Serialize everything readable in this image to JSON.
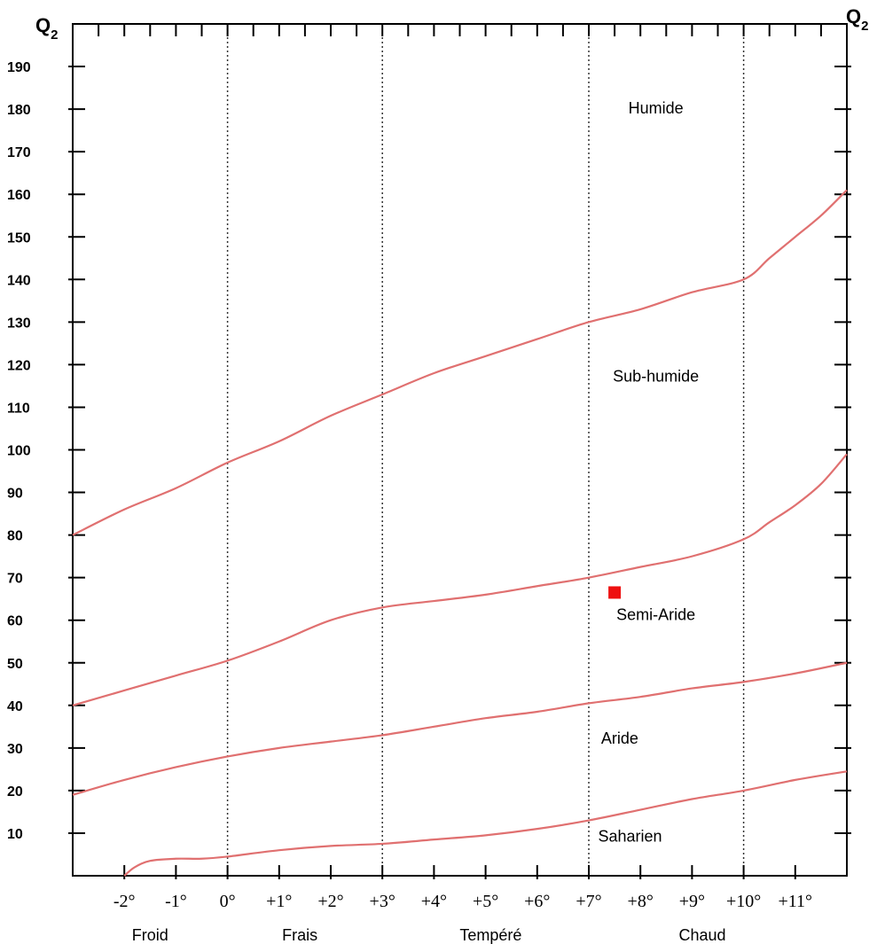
{
  "chart_data": {
    "type": "line",
    "ylabel": "Q",
    "ylabel_sub": "2",
    "ylim": [
      0,
      200
    ],
    "xlim": [
      -3,
      12
    ],
    "yticks": [
      10,
      20,
      30,
      40,
      50,
      60,
      70,
      80,
      90,
      100,
      110,
      120,
      130,
      140,
      150,
      160,
      170,
      180,
      190
    ],
    "ytick_labels": [
      "10",
      "20",
      "30",
      "40",
      "50",
      "60",
      "70",
      "80",
      "90",
      "100",
      "110",
      "120",
      "130",
      "140",
      "150",
      "160",
      "170",
      "180",
      "190"
    ],
    "xticks": [
      -2,
      -1,
      0,
      1,
      2,
      3,
      4,
      5,
      6,
      7,
      8,
      9,
      10,
      11
    ],
    "xtick_labels": [
      "-2°",
      "-1°",
      "0°",
      "+1°",
      "+2°",
      "+3°",
      "+4°",
      "+5°",
      "+6°",
      "+7°",
      "+8°",
      "+9°",
      "+10°",
      "+11°"
    ],
    "vlines": [
      0,
      3,
      7,
      10
    ],
    "line_color": "#e07070",
    "series": [
      {
        "x": [
          -3,
          -2,
          -1,
          0,
          1,
          2,
          3,
          4,
          5,
          6,
          7,
          8,
          9,
          10,
          10.5,
          11,
          11.5,
          12
        ],
        "y": [
          80,
          86,
          91,
          97,
          102,
          108,
          113,
          118,
          122,
          126,
          130,
          133,
          137,
          140,
          145,
          150,
          155,
          161
        ]
      },
      {
        "x": [
          -3,
          -2,
          -1,
          0,
          1,
          2,
          3,
          4,
          5,
          6,
          7,
          8,
          9,
          10,
          10.5,
          11,
          11.5,
          12
        ],
        "y": [
          40,
          43.5,
          47,
          50.5,
          55,
          60,
          63,
          64.5,
          66,
          68,
          70,
          72.5,
          75,
          79,
          83,
          87,
          92,
          99
        ]
      },
      {
        "x": [
          -3,
          -2,
          -1,
          0,
          1,
          2,
          3,
          4,
          5,
          6,
          7,
          8,
          9,
          10,
          11,
          12
        ],
        "y": [
          19,
          22.5,
          25.5,
          28,
          30,
          31.5,
          33,
          35,
          37,
          38.5,
          40.5,
          42,
          44,
          45.5,
          47.5,
          50
        ]
      },
      {
        "x": [
          -2,
          -1.8,
          -1.5,
          -1,
          -0.5,
          0,
          1,
          2,
          3,
          4,
          5,
          6,
          7,
          8,
          9,
          10,
          11,
          12
        ],
        "y": [
          0,
          2,
          3.5,
          4,
          4,
          4.5,
          6,
          7,
          7.5,
          8.5,
          9.5,
          11,
          13,
          15.5,
          18,
          20,
          22.5,
          24.5
        ]
      }
    ],
    "marker": {
      "x": 7.5,
      "y": 66.5,
      "color": "#ee1111"
    },
    "zones": [
      {
        "label": "Humide",
        "x": 8.3,
        "y": 179
      },
      {
        "label": "Sub-humide",
        "x": 8.3,
        "y": 116
      },
      {
        "label": "Semi-Aride",
        "x": 8.3,
        "y": 60
      },
      {
        "label": "Aride",
        "x": 7.6,
        "y": 31
      },
      {
        "label": "Saharien",
        "x": 7.8,
        "y": 8
      }
    ],
    "regions": [
      {
        "label": "Froid",
        "x": -1.5
      },
      {
        "label": "Frais",
        "x": 1.4
      },
      {
        "label": "Tempéré",
        "x": 5.1
      },
      {
        "label": "Chaud",
        "x": 9.2
      }
    ]
  }
}
